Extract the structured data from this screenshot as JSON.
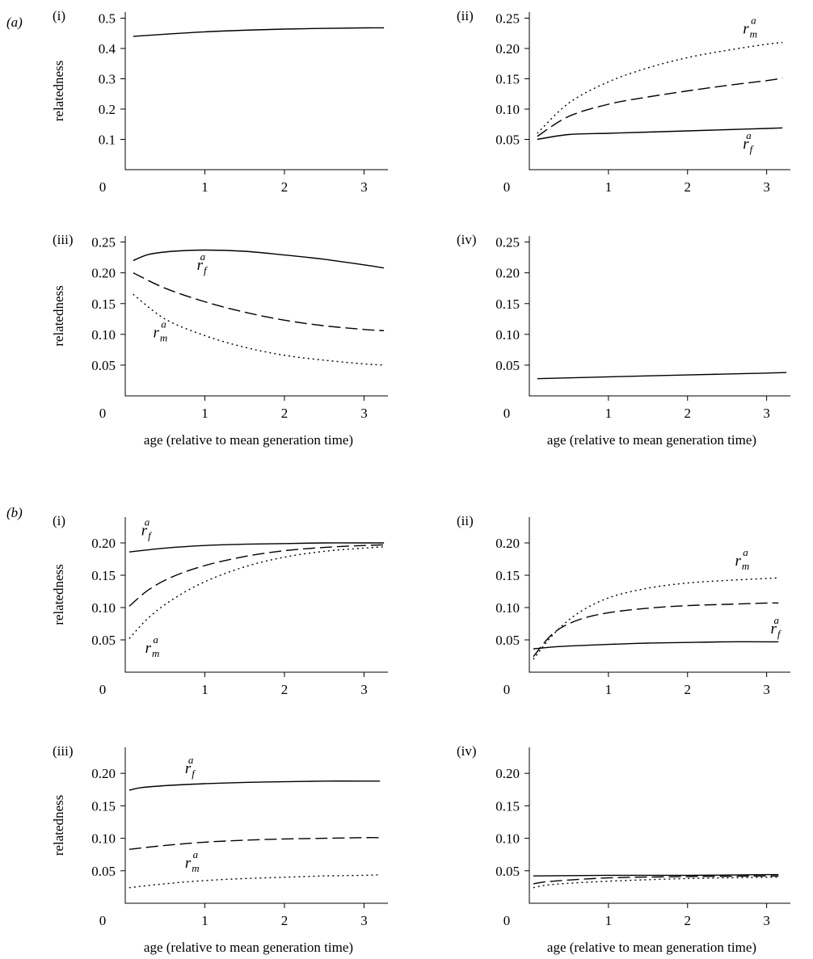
{
  "figure": {
    "group_labels": [
      "(a)",
      "(b)"
    ]
  },
  "chart_data": [
    {
      "group": "(a)",
      "panel": "(i)",
      "type": "line",
      "ylabel": "relatedness",
      "xlabel": "",
      "xlim": [
        0,
        3.3
      ],
      "ylim": [
        0,
        0.52
      ],
      "xticks": [
        "0",
        "1",
        "2",
        "3"
      ],
      "yticks": [
        "0.1",
        "0.2",
        "0.3",
        "0.4",
        "0.5"
      ],
      "series": [
        {
          "style": "solid",
          "x": [
            0.1,
            1,
            2,
            3,
            3.25
          ],
          "y": [
            0.44,
            0.455,
            0.464,
            0.468,
            0.468
          ]
        }
      ],
      "annotations": []
    },
    {
      "group": "(a)",
      "panel": "(ii)",
      "type": "line",
      "ylabel": "",
      "xlabel": "",
      "xlim": [
        0,
        3.3
      ],
      "ylim": [
        0,
        0.26
      ],
      "xticks": [
        "0",
        "1",
        "2",
        "3"
      ],
      "yticks": [
        "0.05",
        "0.10",
        "0.15",
        "0.20",
        "0.25"
      ],
      "series": [
        {
          "name": "r_m^a",
          "style": "dotted",
          "x": [
            0.1,
            0.5,
            1,
            1.5,
            2,
            2.5,
            3,
            3.2
          ],
          "y": [
            0.06,
            0.11,
            0.145,
            0.168,
            0.185,
            0.197,
            0.207,
            0.21
          ]
        },
        {
          "style": "dashed",
          "x": [
            0.1,
            0.5,
            1,
            1.5,
            2,
            2.5,
            3,
            3.2
          ],
          "y": [
            0.055,
            0.088,
            0.108,
            0.12,
            0.13,
            0.139,
            0.147,
            0.151
          ]
        },
        {
          "name": "r_f^a",
          "style": "solid",
          "x": [
            0.1,
            0.5,
            1,
            1.5,
            2,
            2.5,
            3,
            3.2
          ],
          "y": [
            0.05,
            0.058,
            0.06,
            0.062,
            0.064,
            0.066,
            0.068,
            0.069
          ]
        }
      ],
      "annotations": [
        {
          "base": "r",
          "sub": "m",
          "sup": "a",
          "x": 2.7,
          "y": 0.225
        },
        {
          "base": "r",
          "sub": "f",
          "sup": "a",
          "x": 2.7,
          "y": 0.035
        }
      ]
    },
    {
      "group": "(a)",
      "panel": "(iii)",
      "type": "line",
      "ylabel": "relatedness",
      "xlabel": "age (relative to mean generation time)",
      "xlim": [
        0,
        3.3
      ],
      "ylim": [
        0,
        0.26
      ],
      "xticks": [
        "0",
        "1",
        "2",
        "3"
      ],
      "yticks": [
        "0.05",
        "0.10",
        "0.15",
        "0.20",
        "0.25"
      ],
      "series": [
        {
          "name": "r_f^a",
          "style": "solid",
          "x": [
            0.1,
            0.3,
            0.6,
            1,
            1.5,
            2,
            2.5,
            3,
            3.25
          ],
          "y": [
            0.22,
            0.23,
            0.235,
            0.237,
            0.235,
            0.229,
            0.222,
            0.213,
            0.208
          ]
        },
        {
          "style": "dashed",
          "x": [
            0.1,
            0.5,
            1,
            1.5,
            2,
            2.5,
            3,
            3.25
          ],
          "y": [
            0.2,
            0.175,
            0.153,
            0.136,
            0.123,
            0.114,
            0.108,
            0.106
          ]
        },
        {
          "name": "r_m^a",
          "style": "dotted",
          "x": [
            0.1,
            0.5,
            1,
            1.5,
            2,
            2.5,
            3,
            3.25
          ],
          "y": [
            0.165,
            0.125,
            0.098,
            0.079,
            0.066,
            0.058,
            0.052,
            0.05
          ]
        }
      ],
      "annotations": [
        {
          "base": "r",
          "sub": "f",
          "sup": "a",
          "x": 0.9,
          "y": 0.205
        },
        {
          "base": "r",
          "sub": "m",
          "sup": "a",
          "x": 0.35,
          "y": 0.095
        }
      ]
    },
    {
      "group": "(a)",
      "panel": "(iv)",
      "type": "line",
      "ylabel": "",
      "xlabel": "age (relative to mean generation time)",
      "xlim": [
        0,
        3.3
      ],
      "ylim": [
        0,
        0.26
      ],
      "xticks": [
        "0",
        "1",
        "2",
        "3"
      ],
      "yticks": [
        "0.05",
        "0.10",
        "0.15",
        "0.20",
        "0.25"
      ],
      "series": [
        {
          "style": "solid",
          "x": [
            0.1,
            1,
            2,
            3,
            3.25
          ],
          "y": [
            0.028,
            0.031,
            0.034,
            0.037,
            0.038
          ]
        }
      ],
      "annotations": []
    },
    {
      "group": "(b)",
      "panel": "(i)",
      "type": "line",
      "ylabel": "relatedness",
      "xlabel": "",
      "xlim": [
        0,
        3.3
      ],
      "ylim": [
        0,
        0.24
      ],
      "xticks": [
        "0",
        "1",
        "2",
        "3"
      ],
      "yticks": [
        "0.05",
        "0.10",
        "0.15",
        "0.20"
      ],
      "series": [
        {
          "name": "r_f^a",
          "style": "solid",
          "x": [
            0.05,
            0.5,
            1,
            1.5,
            2,
            2.5,
            3,
            3.25
          ],
          "y": [
            0.186,
            0.192,
            0.196,
            0.198,
            0.199,
            0.2,
            0.2,
            0.2
          ]
        },
        {
          "style": "dashed",
          "x": [
            0.05,
            0.3,
            0.6,
            1,
            1.5,
            2,
            2.5,
            3,
            3.25
          ],
          "y": [
            0.102,
            0.128,
            0.148,
            0.165,
            0.179,
            0.188,
            0.193,
            0.196,
            0.197
          ]
        },
        {
          "name": "r_m^a",
          "style": "dotted",
          "x": [
            0.05,
            0.3,
            0.6,
            1,
            1.5,
            2,
            2.5,
            3,
            3.25
          ],
          "y": [
            0.052,
            0.085,
            0.113,
            0.14,
            0.163,
            0.178,
            0.187,
            0.192,
            0.194
          ]
        }
      ],
      "annotations": [
        {
          "base": "r",
          "sub": "f",
          "sup": "a",
          "x": 0.2,
          "y": 0.212
        },
        {
          "base": "r",
          "sub": "m",
          "sup": "a",
          "x": 0.25,
          "y": 0.03
        }
      ]
    },
    {
      "group": "(b)",
      "panel": "(ii)",
      "type": "line",
      "ylabel": "",
      "xlabel": "",
      "xlim": [
        0,
        3.3
      ],
      "ylim": [
        0,
        0.24
      ],
      "xticks": [
        "0",
        "1",
        "2",
        "3"
      ],
      "yticks": [
        "0.05",
        "0.10",
        "0.15",
        "0.20"
      ],
      "series": [
        {
          "name": "r_m^a",
          "style": "dotted",
          "x": [
            0.05,
            0.3,
            0.6,
            1,
            1.5,
            2,
            2.5,
            3,
            3.15
          ],
          "y": [
            0.02,
            0.058,
            0.09,
            0.115,
            0.13,
            0.138,
            0.142,
            0.145,
            0.146
          ]
        },
        {
          "style": "dashed",
          "x": [
            0.05,
            0.3,
            0.6,
            1,
            1.5,
            2,
            2.5,
            3,
            3.15
          ],
          "y": [
            0.024,
            0.06,
            0.08,
            0.092,
            0.099,
            0.103,
            0.105,
            0.107,
            0.107
          ]
        },
        {
          "name": "r_f^a",
          "style": "solid",
          "x": [
            0.05,
            0.3,
            0.6,
            1,
            1.5,
            2,
            2.5,
            3,
            3.15
          ],
          "y": [
            0.036,
            0.039,
            0.041,
            0.043,
            0.045,
            0.046,
            0.047,
            0.047,
            0.047
          ]
        }
      ],
      "annotations": [
        {
          "base": "r",
          "sub": "m",
          "sup": "a",
          "x": 2.6,
          "y": 0.165
        },
        {
          "base": "r",
          "sub": "f",
          "sup": "a",
          "x": 3.05,
          "y": 0.06
        }
      ]
    },
    {
      "group": "(b)",
      "panel": "(iii)",
      "type": "line",
      "ylabel": "relatedness",
      "xlabel": "age (relative to mean generation time)",
      "xlim": [
        0,
        3.3
      ],
      "ylim": [
        0,
        0.24
      ],
      "xticks": [
        "0",
        "1",
        "2",
        "3"
      ],
      "yticks": [
        "0.05",
        "0.10",
        "0.15",
        "0.20"
      ],
      "series": [
        {
          "name": "r_f^a",
          "style": "solid",
          "x": [
            0.05,
            0.2,
            0.5,
            1,
            1.5,
            2,
            2.5,
            3,
            3.2
          ],
          "y": [
            0.174,
            0.178,
            0.181,
            0.184,
            0.186,
            0.187,
            0.188,
            0.188,
            0.188
          ]
        },
        {
          "style": "dashed",
          "x": [
            0.05,
            0.5,
            1,
            1.5,
            2,
            2.5,
            3,
            3.2
          ],
          "y": [
            0.083,
            0.089,
            0.094,
            0.097,
            0.099,
            0.1,
            0.101,
            0.101
          ]
        },
        {
          "name": "r_m^a",
          "style": "dotted",
          "x": [
            0.05,
            0.5,
            1,
            1.5,
            2,
            2.5,
            3,
            3.2
          ],
          "y": [
            0.024,
            0.03,
            0.035,
            0.038,
            0.04,
            0.042,
            0.043,
            0.044
          ]
        }
      ],
      "annotations": [
        {
          "base": "r",
          "sub": "f",
          "sup": "a",
          "x": 0.75,
          "y": 0.2
        },
        {
          "base": "r",
          "sub": "m",
          "sup": "a",
          "x": 0.75,
          "y": 0.055
        }
      ]
    },
    {
      "group": "(b)",
      "panel": "(iv)",
      "type": "line",
      "ylabel": "",
      "xlabel": "age (relative to mean generation time)",
      "xlim": [
        0,
        3.3
      ],
      "ylim": [
        0,
        0.24
      ],
      "xticks": [
        "0",
        "1",
        "2",
        "3"
      ],
      "yticks": [
        "0.05",
        "0.10",
        "0.15",
        "0.20"
      ],
      "series": [
        {
          "style": "solid",
          "x": [
            0.05,
            1,
            2,
            3,
            3.15
          ],
          "y": [
            0.042,
            0.043,
            0.043,
            0.044,
            0.044
          ]
        },
        {
          "style": "dashed",
          "x": [
            0.05,
            0.3,
            1,
            2,
            3,
            3.15
          ],
          "y": [
            0.03,
            0.034,
            0.039,
            0.041,
            0.042,
            0.042
          ]
        },
        {
          "style": "dotted",
          "x": [
            0.05,
            0.3,
            1,
            2,
            3,
            3.15
          ],
          "y": [
            0.024,
            0.029,
            0.034,
            0.038,
            0.04,
            0.04
          ]
        }
      ],
      "annotations": []
    }
  ]
}
